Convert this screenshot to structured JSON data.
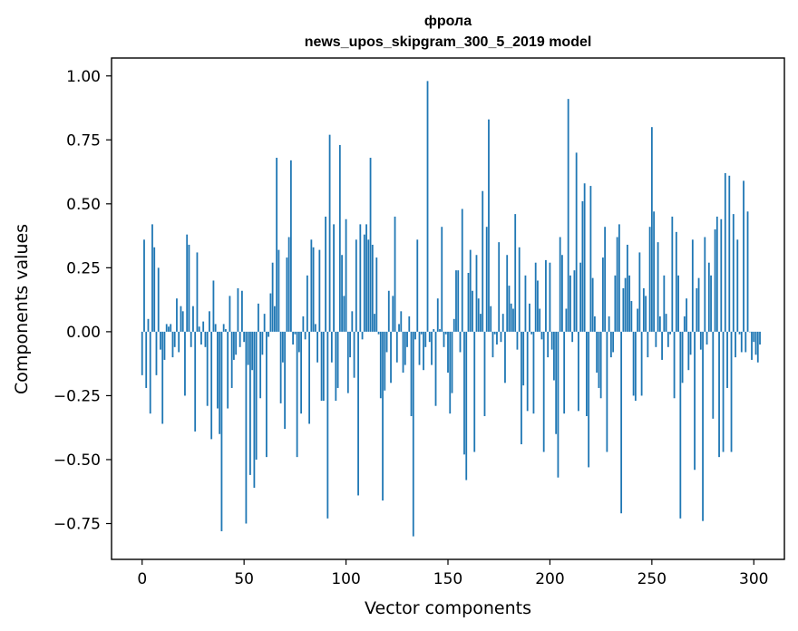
{
  "chart_data": {
    "type": "bar",
    "title": "фрола",
    "subtitle": "news_upos_skipgram_300_5_2019 model",
    "xlabel": "Vector components",
    "ylabel": "Components values",
    "xlim": [
      -15,
      315
    ],
    "ylim": [
      -0.89,
      1.07
    ],
    "xticks": [
      0,
      50,
      100,
      150,
      200,
      250,
      300
    ],
    "yticks": [
      -0.75,
      -0.5,
      -0.25,
      0.0,
      0.25,
      0.5,
      0.75,
      1.0
    ],
    "ytick_labels": [
      "−0.75",
      "−0.50",
      "−0.25",
      "0.00",
      "0.25",
      "0.50",
      "0.75",
      "1.00"
    ],
    "xtick_labels": [
      "0",
      "50",
      "100",
      "150",
      "200",
      "250",
      "300"
    ],
    "bar_color": "#1f77b4",
    "values": [
      -0.17,
      0.36,
      -0.22,
      0.05,
      -0.32,
      0.42,
      0.33,
      -0.17,
      0.25,
      -0.07,
      -0.36,
      -0.11,
      0.03,
      0.02,
      0.03,
      -0.1,
      -0.06,
      0.13,
      -0.08,
      0.1,
      0.08,
      -0.25,
      0.38,
      0.34,
      -0.06,
      0.1,
      -0.39,
      0.31,
      0.02,
      -0.05,
      0.04,
      -0.06,
      -0.29,
      0.08,
      -0.42,
      0.2,
      0.03,
      -0.3,
      -0.4,
      -0.78,
      0.03,
      0.01,
      -0.3,
      0.14,
      -0.22,
      -0.11,
      -0.09,
      0.17,
      -0.06,
      0.16,
      -0.04,
      -0.75,
      -0.13,
      -0.56,
      -0.15,
      -0.61,
      -0.5,
      0.11,
      -0.26,
      -0.09,
      0.07,
      -0.49,
      -0.02,
      0.15,
      0.27,
      0.1,
      0.68,
      0.32,
      -0.28,
      -0.12,
      -0.38,
      0.29,
      0.37,
      0.67,
      -0.05,
      -0.01,
      -0.49,
      -0.08,
      -0.32,
      0.06,
      -0.03,
      0.22,
      -0.36,
      0.36,
      0.33,
      0.03,
      -0.12,
      0.32,
      -0.27,
      -0.27,
      0.45,
      -0.73,
      0.77,
      -0.12,
      0.42,
      -0.27,
      -0.22,
      0.73,
      0.3,
      0.14,
      0.44,
      -0.24,
      -0.1,
      0.08,
      -0.18,
      0.36,
      -0.64,
      0.42,
      -0.03,
      0.38,
      0.42,
      0.36,
      0.68,
      0.34,
      0.07,
      0.29,
      -0.01,
      -0.26,
      -0.66,
      -0.23,
      -0.08,
      0.16,
      -0.2,
      0.14,
      0.45,
      -0.12,
      0.03,
      0.08,
      -0.16,
      -0.13,
      -0.06,
      0.06,
      -0.33,
      -0.8,
      -0.03,
      0.36,
      -0.13,
      -0.01,
      -0.15,
      -0.06,
      0.98,
      -0.04,
      -0.13,
      0.01,
      -0.29,
      0.13,
      0.01,
      0.41,
      -0.06,
      -0.01,
      -0.16,
      -0.32,
      -0.24,
      0.05,
      0.24,
      0.24,
      -0.08,
      0.48,
      -0.48,
      -0.58,
      0.23,
      0.32,
      0.16,
      -0.47,
      0.3,
      0.13,
      0.07,
      0.55,
      -0.33,
      0.41,
      0.83,
      0.1,
      -0.1,
      -0.01,
      -0.05,
      0.35,
      -0.04,
      0.07,
      -0.2,
      0.3,
      0.18,
      0.11,
      0.09,
      0.46,
      -0.07,
      0.33,
      -0.44,
      -0.21,
      0.22,
      -0.31,
      0.11,
      -0.01,
      -0.32,
      0.27,
      0.2,
      0.09,
      -0.03,
      -0.47,
      0.28,
      -0.1,
      0.27,
      -0.07,
      -0.19,
      -0.4,
      -0.57,
      0.37,
      0.3,
      -0.32,
      0.09,
      0.91,
      0.22,
      -0.04,
      0.24,
      0.7,
      -0.31,
      0.27,
      0.51,
      0.58,
      -0.33,
      -0.53,
      0.57,
      0.21,
      0.06,
      -0.16,
      -0.22,
      -0.26,
      0.29,
      0.41,
      -0.47,
      0.06,
      -0.1,
      -0.08,
      0.22,
      0.37,
      0.42,
      -0.71,
      0.17,
      0.21,
      0.34,
      0.22,
      0.12,
      -0.25,
      -0.27,
      0.09,
      0.31,
      -0.25,
      0.17,
      0.14,
      -0.1,
      0.41,
      0.8,
      0.47,
      -0.06,
      0.35,
      0.06,
      -0.11,
      0.22,
      0.07,
      -0.06,
      -0.01,
      0.45,
      -0.26,
      0.39,
      0.22,
      -0.73,
      -0.2,
      0.06,
      0.13,
      -0.15,
      -0.09,
      0.36,
      -0.54,
      0.17,
      0.21,
      -0.07,
      -0.74,
      0.37,
      -0.05,
      0.27,
      0.22,
      -0.34,
      0.4,
      0.45,
      -0.49,
      0.44,
      -0.47,
      0.62,
      -0.22,
      0.61,
      -0.47,
      0.46,
      -0.1,
      0.36,
      -0.01,
      -0.08,
      0.59,
      -0.08,
      0.47,
      0.0,
      -0.11,
      -0.04,
      -0.09,
      -0.12,
      -0.05
    ]
  }
}
